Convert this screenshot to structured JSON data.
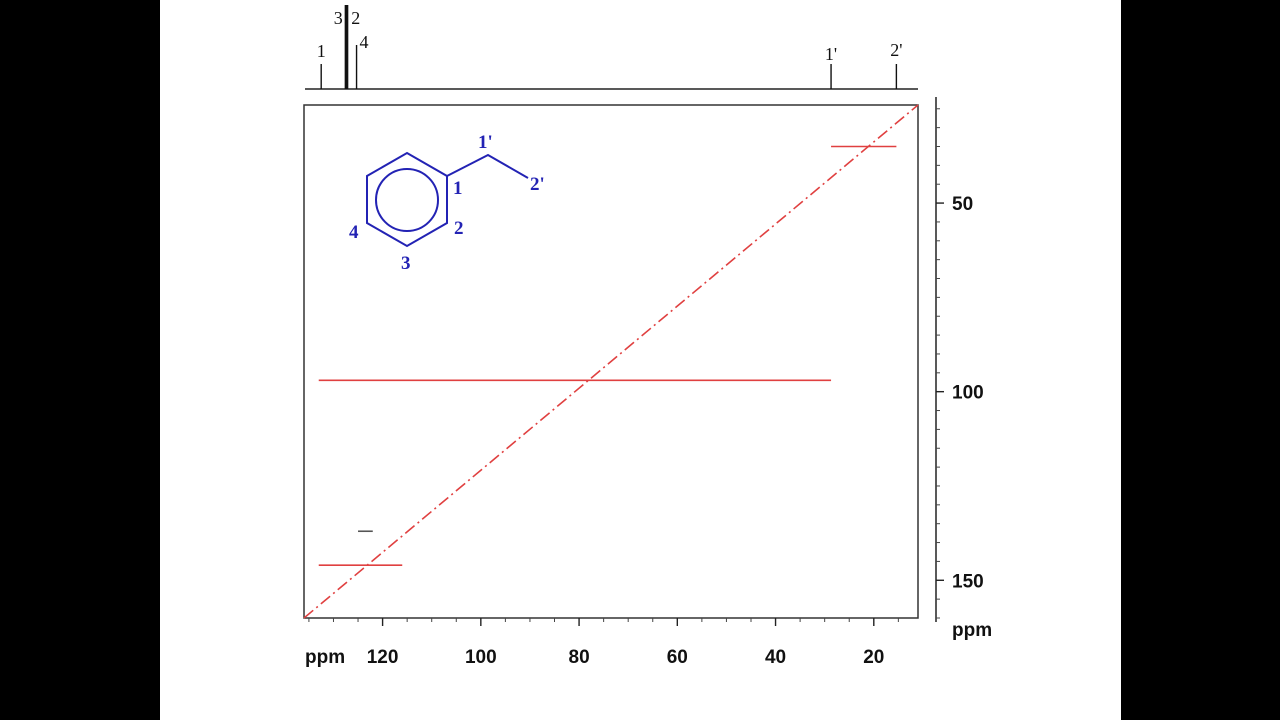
{
  "chart_data": {
    "type": "2D NMR correlation plot",
    "x_axis": {
      "unit_label": "ppm",
      "ticks": [
        120,
        100,
        80,
        60,
        40,
        20
      ],
      "range": [
        136,
        11
      ],
      "reversed": true
    },
    "y_axis": {
      "unit_label": "ppm",
      "ticks": [
        50,
        100,
        150
      ],
      "range": [
        24,
        160
      ],
      "reversed": true
    },
    "top_spectrum_peaks": [
      {
        "label": "1",
        "ppm": 132.5
      },
      {
        "label": "3",
        "ppm": 127.5
      },
      {
        "label": "2",
        "ppm": 127.2
      },
      {
        "label": "4",
        "ppm": 125.3
      },
      {
        "label": "1'",
        "ppm": 28.7
      },
      {
        "label": "2'",
        "ppm": 15.4
      }
    ],
    "diagonal": {
      "from": [
        136,
        160
      ],
      "to": [
        11,
        24
      ],
      "style": "dash-dot",
      "color": "#e04040"
    },
    "correlations": [
      {
        "x_from": 133,
        "x_to": 116,
        "y": 146,
        "color": "#e04040"
      },
      {
        "x_from": 125,
        "x_to": 122,
        "y": 137,
        "color": "#555555"
      },
      {
        "x_from": 133,
        "x_to": 28.7,
        "y": 97,
        "color": "#e04040"
      },
      {
        "x_from": 28.7,
        "x_to": 15.4,
        "y": 35,
        "color": "#e04040"
      }
    ]
  },
  "molecule": {
    "name_labels": [
      "1",
      "2",
      "3",
      "4",
      "1'",
      "2'"
    ],
    "color": "#2323b4"
  }
}
